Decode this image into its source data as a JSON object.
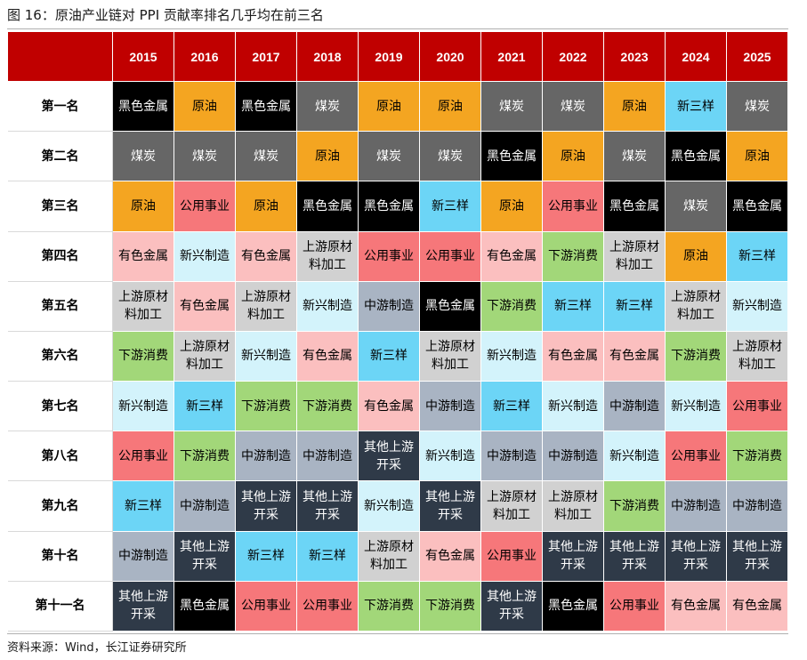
{
  "title": "图 16：原油产业链对 PPI 贡献率排名几乎均在前三名",
  "source": "资料来源：Wind，长江证券研究所",
  "years": [
    "2015",
    "2016",
    "2017",
    "2018",
    "2019",
    "2020",
    "2021",
    "2022",
    "2023",
    "2024",
    "2025"
  ],
  "rank_labels": [
    "第一名",
    "第二名",
    "第三名",
    "第四名",
    "第五名",
    "第六名",
    "第七名",
    "第八名",
    "第九名",
    "第十名",
    "第十一名"
  ],
  "categories": {
    "黑色金属": "#000000",
    "原油": "#f4a521",
    "煤炭": "#666666",
    "新三样": "#6cd5f6",
    "公用事业": "#f6777a",
    "有色金属": "#fbbfbf",
    "新兴制造": "#d3f3fb",
    "下游消费": "#a2d779",
    "上游原材料加工": "#d1d1d1",
    "中游制造": "#a9b4c3",
    "其他上游开采": "#2f3a48"
  },
  "rows": [
    [
      "黑色金属",
      "原油",
      "黑色金属",
      "煤炭",
      "原油",
      "原油",
      "煤炭",
      "煤炭",
      "原油",
      "新三样",
      "煤炭"
    ],
    [
      "煤炭",
      "煤炭",
      "煤炭",
      "原油",
      "煤炭",
      "煤炭",
      "黑色金属",
      "原油",
      "煤炭",
      "黑色金属",
      "原油"
    ],
    [
      "原油",
      "公用事业",
      "原油",
      "黑色金属",
      "黑色金属",
      "新三样",
      "原油",
      "公用事业",
      "黑色金属",
      "煤炭",
      "黑色金属"
    ],
    [
      "有色金属",
      "新兴制造",
      "有色金属",
      "上游原材料加工",
      "公用事业",
      "公用事业",
      "有色金属",
      "下游消费",
      "上游原材料加工",
      "原油",
      "新三样"
    ],
    [
      "上游原材料加工",
      "有色金属",
      "上游原材料加工",
      "新兴制造",
      "中游制造",
      "黑色金属",
      "下游消费",
      "新三样",
      "新三样",
      "上游原材料加工",
      "新兴制造"
    ],
    [
      "下游消费",
      "上游原材料加工",
      "新兴制造",
      "有色金属",
      "新三样",
      "上游原材料加工",
      "新兴制造",
      "有色金属",
      "有色金属",
      "下游消费",
      "上游原材料加工"
    ],
    [
      "新兴制造",
      "新三样",
      "下游消费",
      "下游消费",
      "有色金属",
      "中游制造",
      "新三样",
      "新兴制造",
      "中游制造",
      "新兴制造",
      "公用事业"
    ],
    [
      "公用事业",
      "下游消费",
      "中游制造",
      "中游制造",
      "其他上游开采",
      "新兴制造",
      "中游制造",
      "中游制造",
      "新兴制造",
      "公用事业",
      "下游消费"
    ],
    [
      "新三样",
      "中游制造",
      "其他上游开采",
      "其他上游开采",
      "新兴制造",
      "其他上游开采",
      "上游原材料加工",
      "上游原材料加工",
      "下游消费",
      "中游制造",
      "中游制造"
    ],
    [
      "中游制造",
      "其他上游开采",
      "新三样",
      "新三样",
      "上游原材料加工",
      "有色金属",
      "公用事业",
      "其他上游开采",
      "其他上游开采",
      "其他上游开采",
      "其他上游开采"
    ],
    [
      "其他上游开采",
      "黑色金属",
      "公用事业",
      "公用事业",
      "下游消费",
      "下游消费",
      "其他上游开采",
      "黑色金属",
      "公用事业",
      "有色金属",
      "有色金属"
    ]
  ]
}
